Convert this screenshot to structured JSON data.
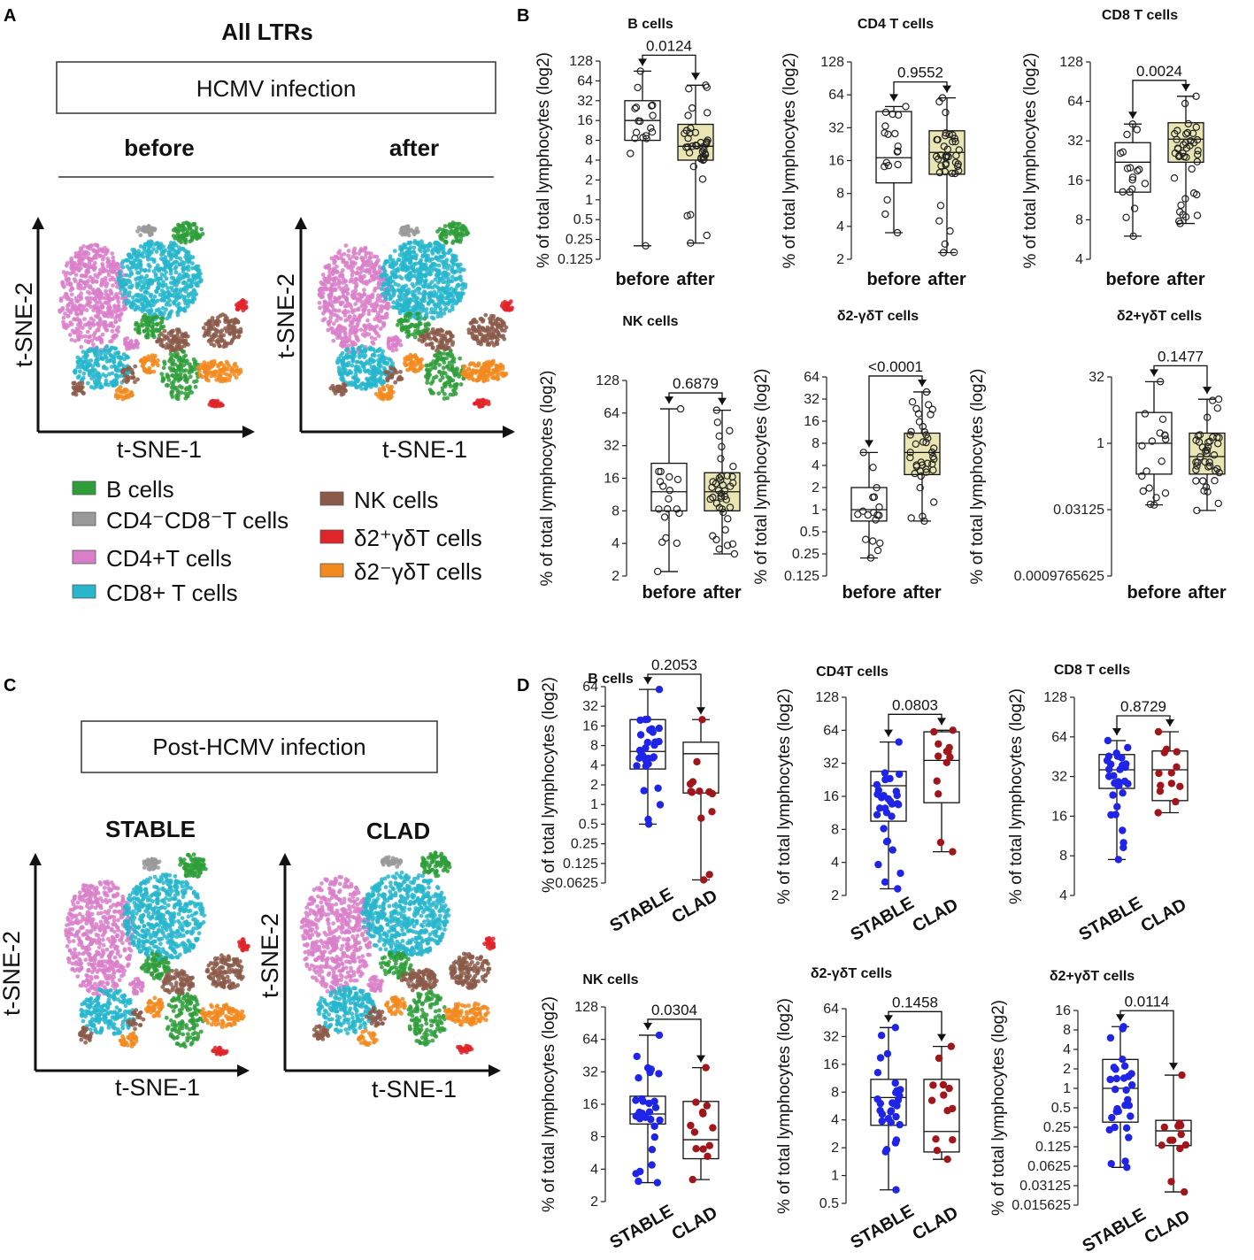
{
  "panel_labels": {
    "a": "A",
    "b": "B",
    "c": "C",
    "d": "D"
  },
  "panel_a": {
    "title": "All LTRs",
    "box_label": "HCMV infection",
    "left_label": "before",
    "right_label": "after",
    "x_axis": "t-SNE-1",
    "y_axis": "t-SNE-2"
  },
  "panel_c": {
    "box_label": "Post-HCMV infection",
    "left_label": "STABLE",
    "right_label": "CLAD",
    "x_axis": "t-SNE-1",
    "y_axis": "t-SNE-2"
  },
  "legend": {
    "items": [
      {
        "label": "B cells",
        "color": "#2e9e3a"
      },
      {
        "label": "CD4⁻CD8⁻T cells",
        "color": "#9a9a9a"
      },
      {
        "label": "CD4+T cells",
        "color": "#d97fc9"
      },
      {
        "label": "CD8+ T cells",
        "color": "#27b6cc"
      },
      {
        "label": "NK cells",
        "color": "#8b5a4a"
      },
      {
        "label": "δ2⁺γδT cells",
        "color": "#e0252a"
      },
      {
        "label": "δ2⁻γδT cells",
        "color": "#f28a1f"
      }
    ]
  },
  "y_axis_label": "% of total lymphocytes (log2)",
  "colors": {
    "box_fill_after": "#e9e6b4",
    "stable": "#1f24e6",
    "clad": "#a0161a"
  },
  "chart_data": [
    {
      "id": "b-bcells",
      "type": "box",
      "title": "B cells",
      "pvalue": "0.0124",
      "categories": [
        "before",
        "after"
      ],
      "yticks": [
        "0.125",
        "0.25",
        "0.5",
        "1",
        "2",
        "4",
        "8",
        "16",
        "32",
        "64",
        "128"
      ],
      "series": [
        {
          "name": "before",
          "min": 0.2,
          "q1": 8,
          "median": 16,
          "q3": 32,
          "max": 90
        },
        {
          "name": "after",
          "min": 0.22,
          "q1": 4,
          "median": 6.5,
          "q3": 14,
          "max": 55
        }
      ]
    },
    {
      "id": "b-cd4",
      "type": "box",
      "title": "CD4 T cells",
      "pvalue": "0.9552",
      "categories": [
        "before",
        "after"
      ],
      "yticks": [
        "2",
        "4",
        "8",
        "16",
        "32",
        "64",
        "128"
      ],
      "series": [
        {
          "name": "before",
          "min": 3.5,
          "q1": 10,
          "median": 17,
          "q3": 45,
          "max": 50
        },
        {
          "name": "after",
          "min": 2.3,
          "q1": 12,
          "median": 19,
          "q3": 30,
          "max": 60
        }
      ]
    },
    {
      "id": "b-cd8",
      "type": "box",
      "title": "CD8 T cells",
      "pvalue": "0.0024",
      "categories": [
        "before",
        "after"
      ],
      "yticks": [
        "4",
        "8",
        "16",
        "32",
        "64",
        "128"
      ],
      "series": [
        {
          "name": "before",
          "min": 6,
          "q1": 13,
          "median": 22,
          "q3": 31,
          "max": 43
        },
        {
          "name": "after",
          "min": 7.5,
          "q1": 22,
          "median": 33,
          "q3": 44,
          "max": 70
        }
      ]
    },
    {
      "id": "b-nk",
      "type": "box",
      "title": "NK cells",
      "pvalue": "0.6879",
      "categories": [
        "before",
        "after"
      ],
      "yticks": [
        "2",
        "4",
        "8",
        "16",
        "32",
        "64",
        "128"
      ],
      "series": [
        {
          "name": "before",
          "min": 2.2,
          "q1": 8,
          "median": 12,
          "q3": 22,
          "max": 70
        },
        {
          "name": "after",
          "min": 3.2,
          "q1": 8,
          "median": 12,
          "q3": 18,
          "max": 68
        }
      ]
    },
    {
      "id": "b-d2neg",
      "type": "box",
      "title": "δ2-γδT cells",
      "pvalue": "<0.0001",
      "categories": [
        "before",
        "after"
      ],
      "yticks": [
        "0.125",
        "0.25",
        "0.5",
        "1",
        "2",
        "4",
        "8",
        "16",
        "32",
        "64"
      ],
      "series": [
        {
          "name": "before",
          "min": 0.22,
          "q1": 0.7,
          "median": 1.0,
          "q3": 2.0,
          "max": 6
        },
        {
          "name": "after",
          "min": 0.7,
          "q1": 3,
          "median": 6,
          "q3": 11,
          "max": 40
        }
      ]
    },
    {
      "id": "b-d2pos",
      "type": "box",
      "title": "δ2+γδT cells",
      "pvalue": "0.1477",
      "categories": [
        "before",
        "after"
      ],
      "yticks": [
        "0.0009765625",
        "0.03125",
        "1",
        "32"
      ],
      "series": [
        {
          "name": "before",
          "min": 0.04,
          "q1": 0.2,
          "median": 1.0,
          "q3": 5,
          "max": 25
        },
        {
          "name": "after",
          "min": 0.03,
          "q1": 0.2,
          "median": 0.5,
          "q3": 1.7,
          "max": 10
        }
      ]
    },
    {
      "id": "d-bcells",
      "type": "box",
      "title": "B cells",
      "pvalue": "0.2053",
      "categories": [
        "STABLE",
        "CLAD"
      ],
      "yticks": [
        "0.0625",
        "0.125",
        "0.25",
        "0.5",
        "1",
        "2",
        "4",
        "8",
        "16",
        "32",
        "64"
      ],
      "series": [
        {
          "name": "STABLE",
          "min": 0.5,
          "q1": 3.5,
          "median": 6.5,
          "q3": 20,
          "max": 58
        },
        {
          "name": "CLAD",
          "min": 0.07,
          "q1": 1.5,
          "median": 6,
          "q3": 9,
          "max": 20
        }
      ]
    },
    {
      "id": "d-cd4",
      "type": "box",
      "title": "CD4T cells",
      "pvalue": "0.0803",
      "categories": [
        "STABLE",
        "CLAD"
      ],
      "yticks": [
        "2",
        "4",
        "8",
        "16",
        "32",
        "64",
        "128"
      ],
      "series": [
        {
          "name": "STABLE",
          "min": 2.3,
          "q1": 9.5,
          "median": 20,
          "q3": 27,
          "max": 50
        },
        {
          "name": "CLAD",
          "min": 5,
          "q1": 14,
          "median": 34,
          "q3": 62,
          "max": 64
        }
      ]
    },
    {
      "id": "d-cd8",
      "type": "box",
      "title": "CD8 T cells",
      "pvalue": "0.8729",
      "categories": [
        "STABLE",
        "CLAD"
      ],
      "yticks": [
        "4",
        "8",
        "16",
        "32",
        "64",
        "128"
      ],
      "series": [
        {
          "name": "STABLE",
          "min": 7.5,
          "q1": 26,
          "median": 36,
          "q3": 47,
          "max": 60
        },
        {
          "name": "CLAD",
          "min": 17,
          "q1": 21,
          "median": 36,
          "q3": 50,
          "max": 70
        }
      ]
    },
    {
      "id": "d-nk",
      "type": "box",
      "title": "NK cells",
      "pvalue": "0.0304",
      "categories": [
        "STABLE",
        "CLAD"
      ],
      "yticks": [
        "2",
        "4",
        "8",
        "16",
        "32",
        "64",
        "128"
      ],
      "series": [
        {
          "name": "STABLE",
          "min": 3,
          "q1": 10.5,
          "median": 13,
          "q3": 19,
          "max": 70
        },
        {
          "name": "CLAD",
          "min": 3.2,
          "q1": 5,
          "median": 7.5,
          "q3": 17,
          "max": 35
        }
      ]
    },
    {
      "id": "d-d2neg",
      "type": "box",
      "title": "δ2-γδT cells",
      "pvalue": "0.1458",
      "categories": [
        "STABLE",
        "CLAD"
      ],
      "yticks": [
        "0.5",
        "1",
        "2",
        "4",
        "8",
        "16",
        "32",
        "64"
      ],
      "series": [
        {
          "name": "STABLE",
          "min": 0.7,
          "q1": 3.5,
          "median": 7,
          "q3": 11,
          "max": 40
        },
        {
          "name": "CLAD",
          "min": 1.5,
          "q1": 1.8,
          "median": 3,
          "q3": 11,
          "max": 25
        }
      ]
    },
    {
      "id": "d-d2pos",
      "type": "box",
      "title": "δ2+γδT cells",
      "pvalue": "0.0114",
      "categories": [
        "STABLE",
        "CLAD"
      ],
      "yticks": [
        "0.015625",
        "0.03125",
        "0.0625",
        "0.125",
        "0.25",
        "0.5",
        "1",
        "2",
        "4",
        "8",
        "16"
      ],
      "series": [
        {
          "name": "STABLE",
          "min": 0.06,
          "q1": 0.3,
          "median": 1.0,
          "q3": 2.8,
          "max": 9
        },
        {
          "name": "CLAD",
          "min": 0.025,
          "q1": 0.13,
          "median": 0.22,
          "q3": 0.32,
          "max": 1.6
        }
      ]
    }
  ]
}
